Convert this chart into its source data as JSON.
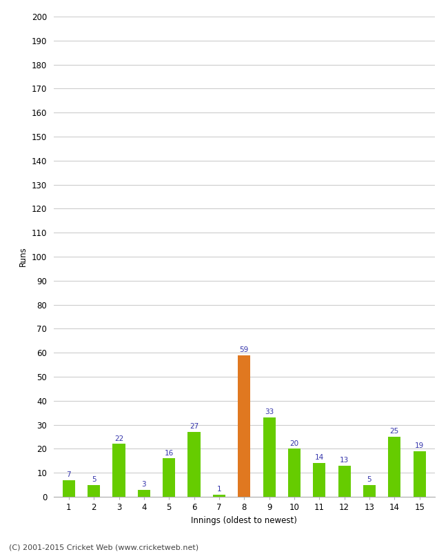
{
  "innings": [
    1,
    2,
    3,
    4,
    5,
    6,
    7,
    8,
    9,
    10,
    11,
    12,
    13,
    14,
    15
  ],
  "runs": [
    7,
    5,
    22,
    3,
    16,
    27,
    1,
    59,
    33,
    20,
    14,
    13,
    5,
    25,
    19
  ],
  "bar_colors": [
    "#66cc00",
    "#66cc00",
    "#66cc00",
    "#66cc00",
    "#66cc00",
    "#66cc00",
    "#66cc00",
    "#e07820",
    "#66cc00",
    "#66cc00",
    "#66cc00",
    "#66cc00",
    "#66cc00",
    "#66cc00",
    "#66cc00"
  ],
  "label_color": "#3333aa",
  "xlabel": "Innings (oldest to newest)",
  "ylabel": "Runs",
  "ylim": [
    0,
    200
  ],
  "yticks": [
    0,
    10,
    20,
    30,
    40,
    50,
    60,
    70,
    80,
    90,
    100,
    110,
    120,
    130,
    140,
    150,
    160,
    170,
    180,
    190,
    200
  ],
  "footer": "(C) 2001-2015 Cricket Web (www.cricketweb.net)",
  "background_color": "#ffffff",
  "grid_color": "#cccccc",
  "label_fontsize": 7.5,
  "axis_fontsize": 8.5,
  "footer_fontsize": 8,
  "bar_width": 0.5
}
